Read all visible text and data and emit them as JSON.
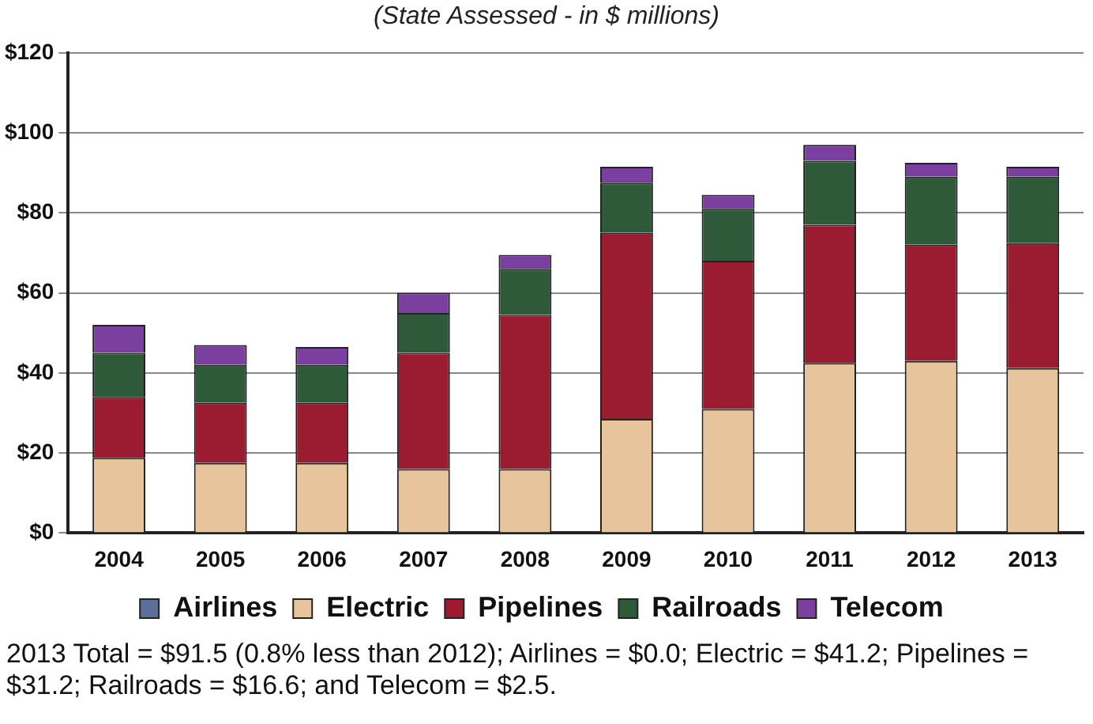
{
  "chart_data": {
    "type": "bar",
    "title": "(State Assessed - in $ millions)",
    "stacked": true,
    "categories": [
      "2004",
      "2005",
      "2006",
      "2007",
      "2008",
      "2009",
      "2010",
      "2011",
      "2012",
      "2013"
    ],
    "series": [
      {
        "name": "Airlines",
        "color": "#5b6f9a",
        "values": [
          0,
          0,
          0,
          0,
          0,
          0,
          0,
          0,
          0,
          0
        ]
      },
      {
        "name": "Electric",
        "color": "#e8c49c",
        "values": [
          18.8,
          17.5,
          17.5,
          16,
          16,
          28.5,
          31,
          42.5,
          43,
          41.2
        ]
      },
      {
        "name": "Pipelines",
        "color": "#9b1b30",
        "values": [
          15.2,
          15,
          15,
          29,
          38.5,
          46.5,
          37,
          34.5,
          29,
          31.2
        ]
      },
      {
        "name": "Railroads",
        "color": "#2e5a3a",
        "values": [
          11,
          9.5,
          9.5,
          10,
          11.5,
          12.5,
          13,
          16,
          17,
          16.6
        ]
      },
      {
        "name": "Telecom",
        "color": "#7b3fa0",
        "values": [
          7,
          5,
          4.5,
          5,
          3.5,
          4,
          3.5,
          4,
          3.5,
          2.5
        ]
      }
    ],
    "ylim": [
      0,
      120
    ],
    "yticks": [
      {
        "value": 0,
        "label": "$0"
      },
      {
        "value": 20,
        "label": "$20"
      },
      {
        "value": 40,
        "label": "$40"
      },
      {
        "value": 60,
        "label": "$60"
      },
      {
        "value": 80,
        "label": "$80"
      },
      {
        "value": 100,
        "label": "$100"
      },
      {
        "value": 120,
        "label": "$120"
      }
    ],
    "grid": "y",
    "legend": "bottom",
    "annotations": [
      "2013 Total = $91.5 (0.8% less than 2012); Airlines = $0.0; Electric = $41.2; Pipelines = $31.2; Railroads = $16.6; and Telecom = $2.5."
    ]
  }
}
